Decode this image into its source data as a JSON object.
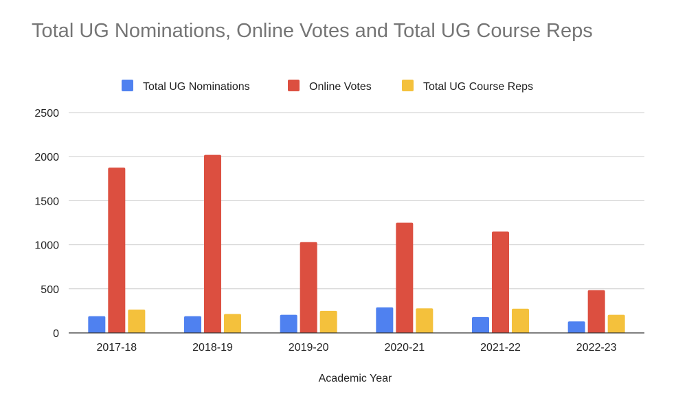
{
  "chart_data": {
    "type": "bar",
    "title": "Total UG Nominations, Online Votes and Total UG Course Reps",
    "xlabel": "Academic Year",
    "ylabel": "",
    "categories": [
      "2017-18",
      "2018-19",
      "2019-20",
      "2020-21",
      "2021-22",
      "2022-23"
    ],
    "series": [
      {
        "name": "Total UG Nominations",
        "color": "#4f81f0",
        "values": [
          190,
          190,
          205,
          290,
          180,
          130
        ]
      },
      {
        "name": "Online Votes",
        "color": "#dc4f40",
        "values": [
          1875,
          2020,
          1030,
          1250,
          1150,
          485
        ]
      },
      {
        "name": "Total UG Course Reps",
        "color": "#f4c13c",
        "values": [
          265,
          215,
          250,
          278,
          275,
          205
        ]
      }
    ],
    "ylim": [
      0,
      2500
    ],
    "yticks": [
      0,
      500,
      1000,
      1500,
      2000,
      2500
    ],
    "grid": true,
    "legend_position": "top"
  }
}
